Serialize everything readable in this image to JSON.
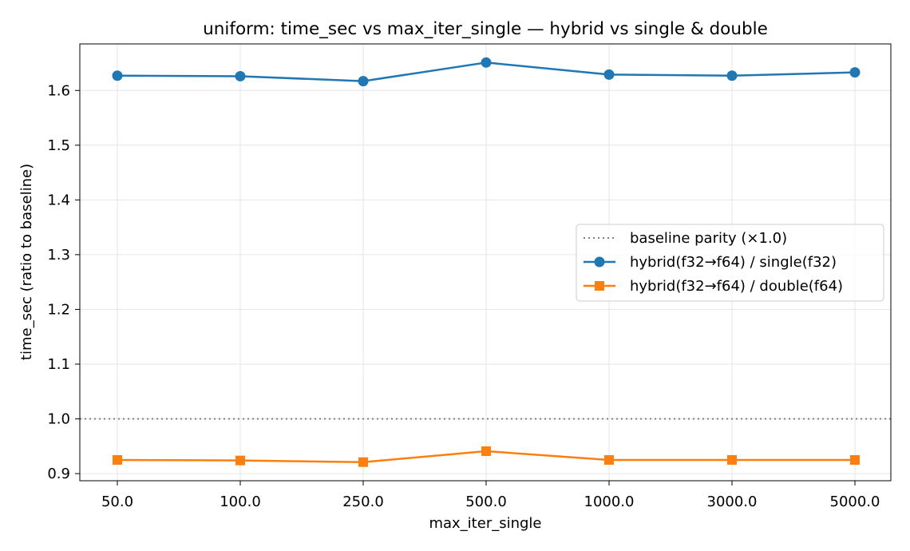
{
  "chart_data": {
    "type": "line",
    "title": "uniform: time_sec vs max_iter_single — hybrid vs single & double",
    "xlabel": "max_iter_single",
    "ylabel": "time_sec (ratio to baseline)",
    "categories": [
      "50.0",
      "100.0",
      "250.0",
      "500.0",
      "1000.0",
      "3000.0",
      "5000.0"
    ],
    "yticks": [
      "0.9",
      "1.0",
      "1.1",
      "1.2",
      "1.3",
      "1.4",
      "1.5",
      "1.6"
    ],
    "ylim": [
      0.887,
      1.685
    ],
    "grid": true,
    "legend_position": "center-right",
    "reference_line": {
      "name": "baseline parity (×1.0)",
      "y": 1.0,
      "color": "#808080",
      "style": "dotted"
    },
    "series": [
      {
        "name": "hybrid(f32→f64) / single(f32)",
        "color": "#1f77b4",
        "marker": "circle",
        "values": [
          1.627,
          1.626,
          1.617,
          1.651,
          1.629,
          1.627,
          1.633
        ]
      },
      {
        "name": "hybrid(f32→f64) / double(f64)",
        "color": "#ff7f0e",
        "marker": "square",
        "values": [
          0.925,
          0.924,
          0.921,
          0.941,
          0.925,
          0.925,
          0.925
        ]
      }
    ]
  }
}
